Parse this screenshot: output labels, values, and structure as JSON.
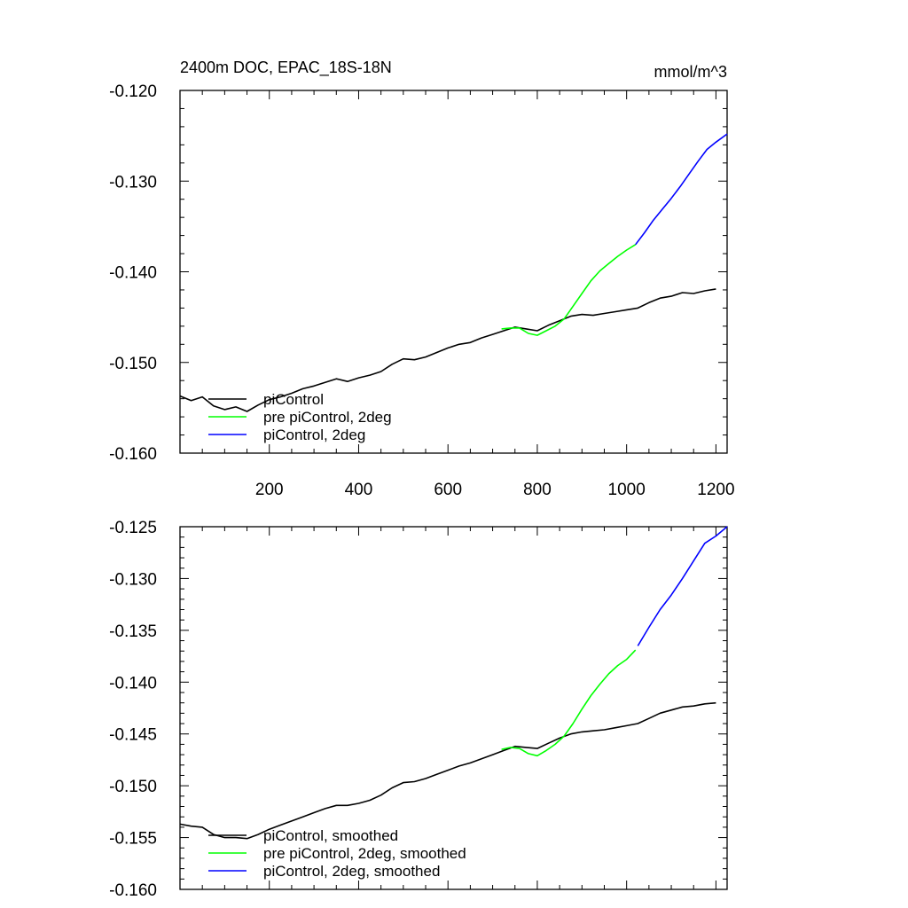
{
  "chart_data": [
    {
      "type": "line",
      "title": "2400m DOC, EPAC_18S-18N",
      "units": "mmol/m^3",
      "xlabel": "",
      "ylabel": "",
      "xlim": [
        0,
        1225
      ],
      "ylim": [
        -0.16,
        -0.12
      ],
      "xticks": [
        200,
        400,
        600,
        800,
        1000,
        1200
      ],
      "xtick_labels": [
        "200",
        "400",
        "600",
        "800",
        "1000",
        "1200"
      ],
      "yticks": [
        -0.16,
        -0.15,
        -0.14,
        -0.13,
        -0.12
      ],
      "ytick_labels": [
        "-0.160",
        "-0.150",
        "-0.140",
        "-0.130",
        "-0.120"
      ],
      "legend_position": "bottom-left",
      "series": [
        {
          "name": "piControl",
          "color": "#000000",
          "x": [
            0,
            25,
            50,
            75,
            100,
            125,
            150,
            175,
            200,
            225,
            250,
            275,
            300,
            325,
            350,
            375,
            400,
            425,
            450,
            475,
            500,
            525,
            550,
            575,
            600,
            625,
            650,
            675,
            700,
            725,
            750,
            775,
            800,
            825,
            850,
            875,
            900,
            925,
            950,
            975,
            1000,
            1025,
            1050,
            1075,
            1100,
            1125,
            1150,
            1175,
            1200
          ],
          "values": [
            -0.1537,
            -0.1542,
            -0.1538,
            -0.1548,
            -0.1552,
            -0.1549,
            -0.1554,
            -0.1547,
            -0.1541,
            -0.1538,
            -0.1534,
            -0.1529,
            -0.1526,
            -0.1522,
            -0.1518,
            -0.1521,
            -0.1517,
            -0.1514,
            -0.151,
            -0.1502,
            -0.1496,
            -0.1497,
            -0.1494,
            -0.1489,
            -0.1484,
            -0.148,
            -0.1478,
            -0.1473,
            -0.1469,
            -0.1465,
            -0.1461,
            -0.1463,
            -0.1465,
            -0.1459,
            -0.1454,
            -0.1449,
            -0.1447,
            -0.1448,
            -0.1446,
            -0.1444,
            -0.1442,
            -0.144,
            -0.1434,
            -0.1429,
            -0.1427,
            -0.1423,
            -0.1424,
            -0.1421,
            -0.1419
          ]
        },
        {
          "name": "pre piControl, 2deg",
          "color": "#00ff00",
          "x": [
            720,
            740,
            760,
            780,
            800,
            820,
            840,
            860,
            880,
            900,
            920,
            940,
            960,
            980,
            1000,
            1020
          ],
          "values": [
            -0.1463,
            -0.1462,
            -0.1462,
            -0.1468,
            -0.147,
            -0.1465,
            -0.146,
            -0.1452,
            -0.1438,
            -0.1424,
            -0.141,
            -0.1399,
            -0.1391,
            -0.1383,
            -0.1376,
            -0.137
          ]
        },
        {
          "name": "piControl, 2deg",
          "color": "#0000ff",
          "x": [
            1020,
            1040,
            1060,
            1080,
            1100,
            1120,
            1140,
            1160,
            1180,
            1200,
            1225
          ],
          "values": [
            -0.137,
            -0.1357,
            -0.1343,
            -0.1331,
            -0.1319,
            -0.1306,
            -0.1292,
            -0.1278,
            -0.1265,
            -0.1257,
            -0.1248
          ]
        }
      ]
    },
    {
      "type": "line",
      "title": "",
      "xlabel": "",
      "ylabel": "",
      "xlim": [
        0,
        1225
      ],
      "ylim": [
        -0.16,
        -0.125
      ],
      "xticks": [
        200,
        400,
        600,
        800,
        1000,
        1200
      ],
      "yticks": [
        -0.16,
        -0.155,
        -0.15,
        -0.145,
        -0.14,
        -0.135,
        -0.13,
        -0.125
      ],
      "ytick_labels": [
        "-0.160",
        "-0.155",
        "-0.150",
        "-0.145",
        "-0.140",
        "-0.135",
        "-0.130",
        "-0.125"
      ],
      "legend_position": "bottom-left",
      "series": [
        {
          "name": "piControl, smoothed",
          "color": "#000000",
          "x": [
            0,
            25,
            50,
            75,
            100,
            125,
            150,
            175,
            200,
            225,
            250,
            275,
            300,
            325,
            350,
            375,
            400,
            425,
            450,
            475,
            500,
            525,
            550,
            575,
            600,
            625,
            650,
            675,
            700,
            725,
            750,
            775,
            800,
            825,
            850,
            875,
            900,
            925,
            950,
            975,
            1000,
            1025,
            1050,
            1075,
            1100,
            1125,
            1150,
            1175,
            1200
          ],
          "values": [
            -0.1537,
            -0.1539,
            -0.154,
            -0.1547,
            -0.155,
            -0.155,
            -0.1551,
            -0.1547,
            -0.1542,
            -0.1538,
            -0.1534,
            -0.153,
            -0.1526,
            -0.1522,
            -0.1519,
            -0.1519,
            -0.1517,
            -0.1514,
            -0.1509,
            -0.1502,
            -0.1497,
            -0.1496,
            -0.1493,
            -0.1489,
            -0.1485,
            -0.1481,
            -0.1478,
            -0.1474,
            -0.147,
            -0.1466,
            -0.1462,
            -0.1463,
            -0.1464,
            -0.1459,
            -0.1454,
            -0.145,
            -0.1448,
            -0.1447,
            -0.1446,
            -0.1444,
            -0.1442,
            -0.144,
            -0.1435,
            -0.143,
            -0.1427,
            -0.1424,
            -0.1423,
            -0.1421,
            -0.142
          ]
        },
        {
          "name": "pre piControl, 2deg, smoothed",
          "color": "#00ff00",
          "x": [
            720,
            740,
            760,
            780,
            800,
            820,
            840,
            860,
            880,
            900,
            920,
            940,
            960,
            980,
            1000,
            1020
          ],
          "values": [
            -0.1465,
            -0.1463,
            -0.1464,
            -0.1469,
            -0.1471,
            -0.1466,
            -0.146,
            -0.1452,
            -0.144,
            -0.1426,
            -0.1413,
            -0.1402,
            -0.1392,
            -0.1384,
            -0.1378,
            -0.1369
          ]
        },
        {
          "name": "piControl, 2deg, smoothed",
          "color": "#0000ff",
          "x": [
            1025,
            1050,
            1075,
            1100,
            1125,
            1150,
            1175,
            1200,
            1225
          ],
          "values": [
            -0.1365,
            -0.1347,
            -0.133,
            -0.1316,
            -0.13,
            -0.1283,
            -0.1266,
            -0.1259,
            -0.125
          ]
        }
      ]
    }
  ]
}
